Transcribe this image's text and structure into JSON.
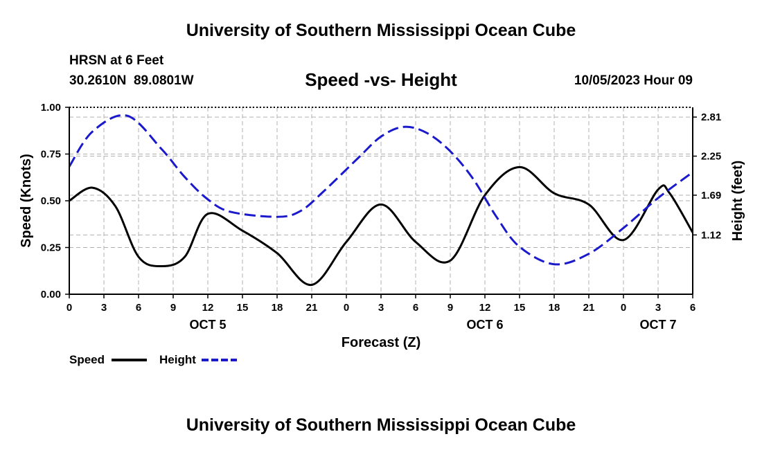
{
  "header": {
    "title_top": "University of Southern Mississippi Ocean Cube",
    "station": "HRSN at 6 Feet",
    "coords": "30.2610N  89.0801W",
    "chart_title": "Speed -vs- Height",
    "datetime": "10/05/2023 Hour 09",
    "title_bottom": "University of Southern Mississippi Ocean Cube"
  },
  "legend": {
    "speed_label": "Speed",
    "height_label": "Height"
  },
  "colors": {
    "speed": "#000000",
    "height": "#1a1acc",
    "grid": "#b0b0b0"
  },
  "chart_data": {
    "type": "line",
    "title": "Speed -vs- Height",
    "xlabel": "Forecast (Z)",
    "ylabel_left": "Speed (Knots)",
    "ylabel_right": "Height (feet)",
    "x_range": [
      0,
      54
    ],
    "x_ticks": [
      0,
      3,
      6,
      9,
      12,
      15,
      18,
      21,
      24,
      27,
      30,
      33,
      36,
      39,
      42,
      45,
      48,
      51,
      54
    ],
    "x_tick_labels": [
      "0",
      "3",
      "6",
      "9",
      "12",
      "15",
      "18",
      "21",
      "0",
      "3",
      "6",
      "9",
      "12",
      "15",
      "18",
      "21",
      "0",
      "3",
      "6"
    ],
    "day_labels": [
      {
        "x": 12,
        "label": "OCT 5"
      },
      {
        "x": 36,
        "label": "OCT 6"
      },
      {
        "x": 51,
        "label": "OCT 7"
      }
    ],
    "ylim_left": [
      0,
      1
    ],
    "yticks_left": [
      0,
      0.25,
      0.5,
      0.75,
      1
    ],
    "ytick_labels_left": [
      "0.00",
      "0.25",
      "0.50",
      "0.75",
      "1.00"
    ],
    "ylim_right": [
      0.27,
      2.95
    ],
    "yticks_right": [
      1.12,
      1.69,
      2.25,
      2.81
    ],
    "ytick_labels_right": [
      "1.12",
      "1.69",
      "2.25",
      "2.81"
    ],
    "grid": true,
    "series": [
      {
        "name": "Speed",
        "axis": "left",
        "style": "solid",
        "x": [
          0,
          2,
          4,
          6,
          8,
          10,
          12,
          15,
          18,
          21,
          24,
          27,
          30,
          33,
          36,
          39,
          42,
          45,
          48,
          51,
          52,
          54
        ],
        "y": [
          0.5,
          0.57,
          0.47,
          0.2,
          0.15,
          0.2,
          0.43,
          0.34,
          0.22,
          0.05,
          0.28,
          0.48,
          0.28,
          0.18,
          0.53,
          0.68,
          0.54,
          0.48,
          0.29,
          0.56,
          0.54,
          0.33
        ]
      },
      {
        "name": "Height",
        "axis": "right",
        "style": "dashed",
        "x": [
          0,
          2,
          5,
          8,
          10,
          12,
          14,
          18,
          20,
          22,
          25,
          27,
          29,
          31,
          33,
          35,
          37,
          39,
          42,
          45,
          48,
          51,
          54
        ],
        "y": [
          2.1,
          2.6,
          2.83,
          2.35,
          1.95,
          1.63,
          1.45,
          1.38,
          1.46,
          1.74,
          2.22,
          2.53,
          2.67,
          2.58,
          2.32,
          1.92,
          1.38,
          0.95,
          0.7,
          0.85,
          1.22,
          1.65,
          2.02
        ]
      }
    ]
  }
}
